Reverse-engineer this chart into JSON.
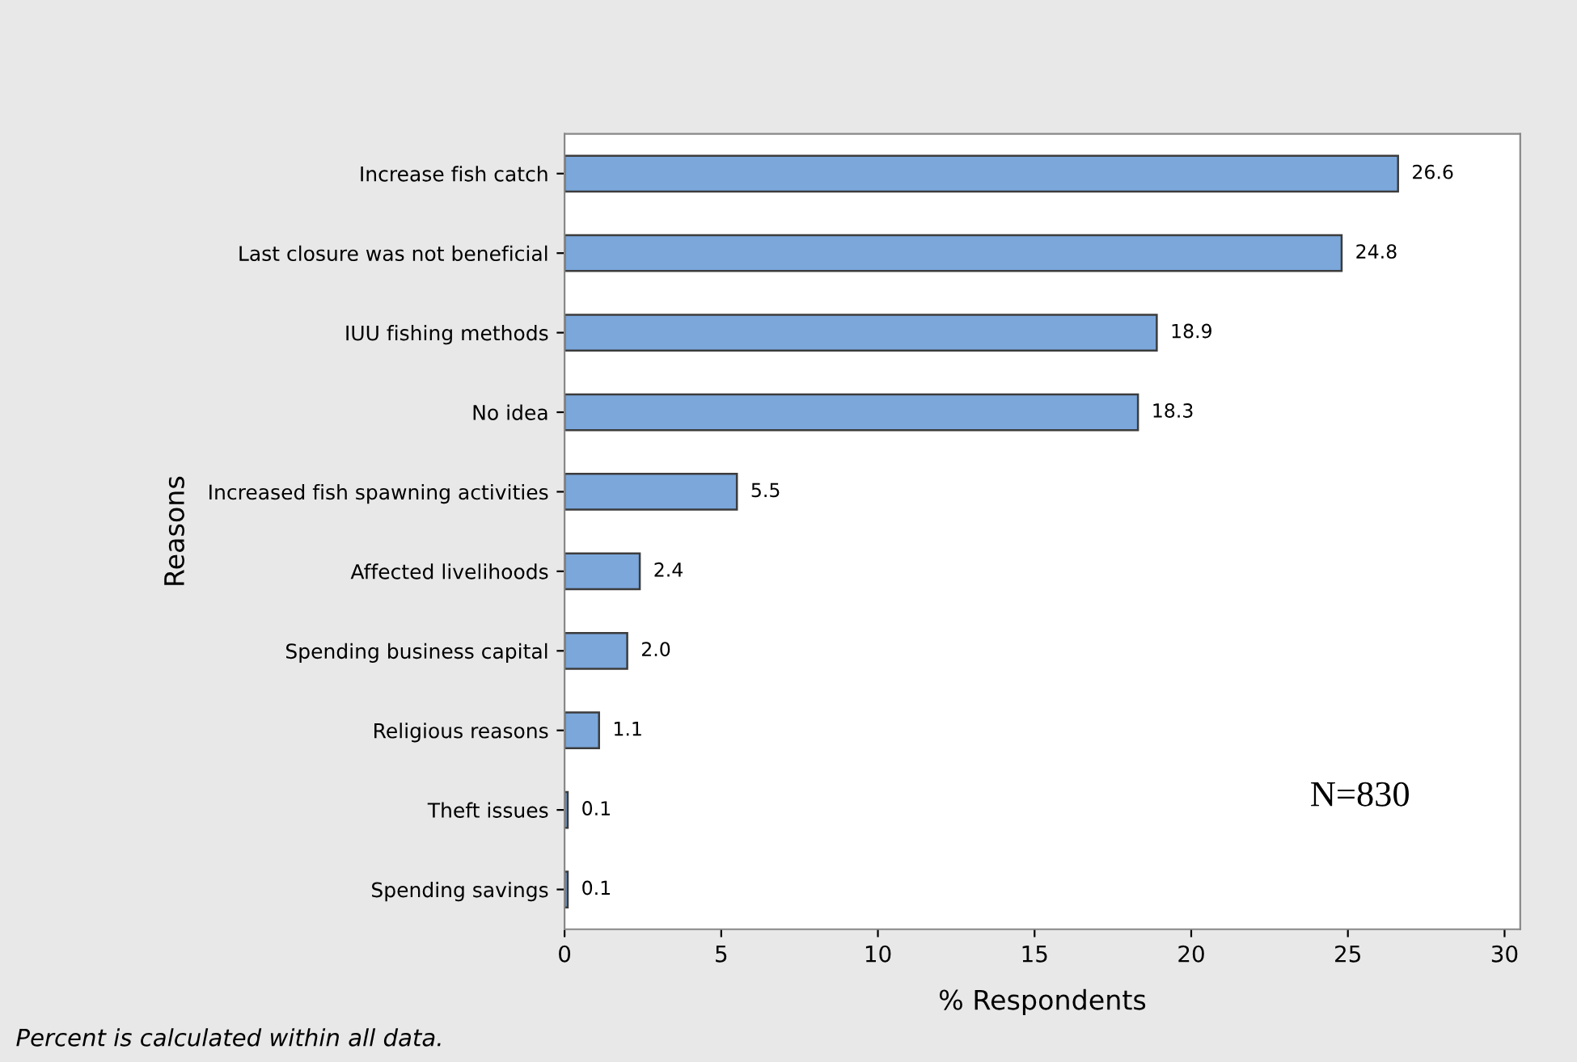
{
  "chart_data": {
    "type": "bar",
    "orientation": "horizontal",
    "xlabel": "% Respondents",
    "ylabel": "Reasons",
    "categories": [
      "Increase fish catch",
      "Last closure was not beneficial",
      "IUU fishing methods",
      "No idea",
      "Increased fish spawning activities",
      "Affected livelihoods",
      "Spending business capital",
      "Religious reasons",
      "Theft issues",
      "Spending savings"
    ],
    "values": [
      26.6,
      24.8,
      18.9,
      18.3,
      5.5,
      2.4,
      2.0,
      1.1,
      0.1,
      0.1
    ],
    "value_labels": [
      "26.6",
      "24.8",
      "18.9",
      "18.3",
      "5.5",
      "2.4",
      "2.0",
      "1.1",
      "0.1",
      "0.1"
    ],
    "color": "#7ba7db",
    "xlim": [
      0,
      30.5
    ],
    "xticks": [
      0,
      5,
      10,
      15,
      20,
      25,
      30
    ],
    "grid": false,
    "legend": false,
    "annotations": [
      "N=830",
      "Percent is calculated within all data."
    ]
  }
}
